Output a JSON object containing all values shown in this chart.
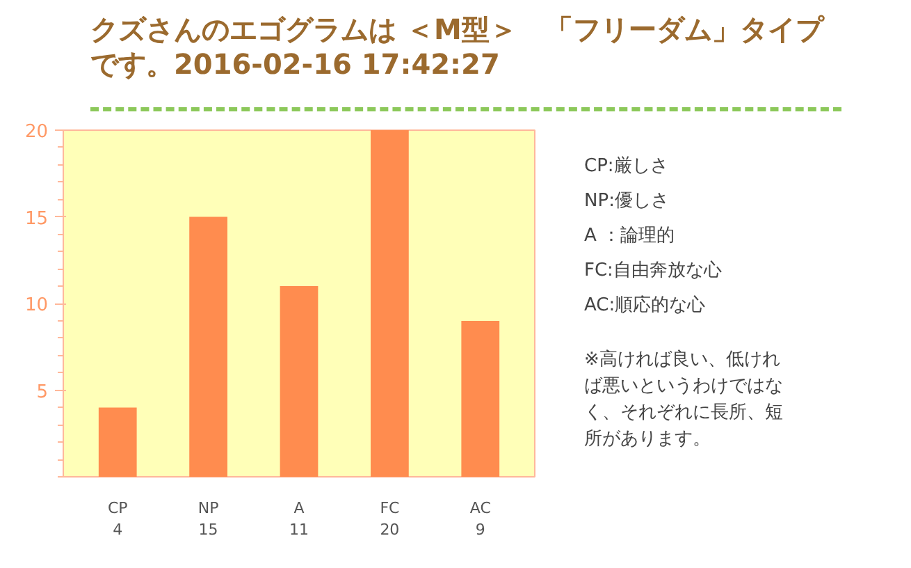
{
  "chart_data": {
    "type": "bar",
    "title": "クズさんのエゴグラムは ＜M型＞　「フリーダム」タイプです。2016-02-16 17:42:27",
    "categories": [
      "CP",
      "NP",
      "A",
      "FC",
      "AC"
    ],
    "values": [
      4,
      15,
      11,
      20,
      9
    ],
    "color": "#ff8c4f",
    "ylim": [
      0,
      20
    ],
    "yticks": [
      5,
      10,
      15,
      20
    ],
    "data_labels": true,
    "annotations": [
      "CP:厳しさ",
      "NP:優しさ",
      "A ：論理的",
      "FC:自由奔放な心",
      "AC:順応的な心",
      "※高ければ良い、低ければ悪いというわけではなく、それぞれに長所、短所があります。"
    ]
  }
}
